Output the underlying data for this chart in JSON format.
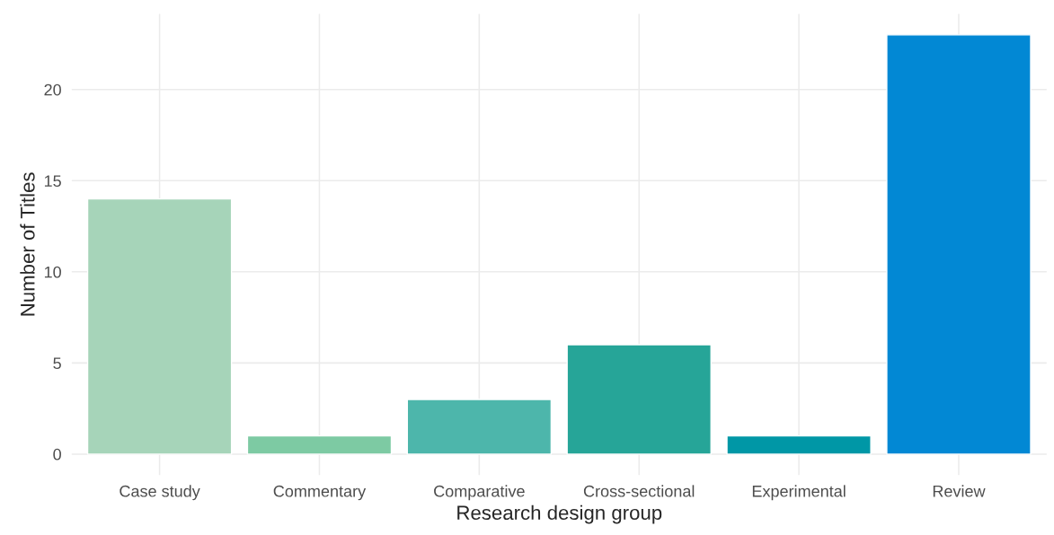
{
  "chart_data": {
    "type": "bar",
    "xlabel": "Research design group",
    "ylabel": "Number of Titles",
    "categories": [
      "Case study",
      "Commentary",
      "Comparative",
      "Cross-sectional",
      "Experimental",
      "Review"
    ],
    "values": [
      14,
      1,
      3,
      6,
      1,
      23
    ],
    "colors": [
      "#a6d4b9",
      "#7dcaa3",
      "#4db6ab",
      "#26a598",
      "#0097a6",
      "#0288d4"
    ],
    "ylim": [
      -1.15,
      24.15
    ],
    "yticks": [
      0,
      5,
      10,
      15,
      20
    ],
    "grid": true
  }
}
